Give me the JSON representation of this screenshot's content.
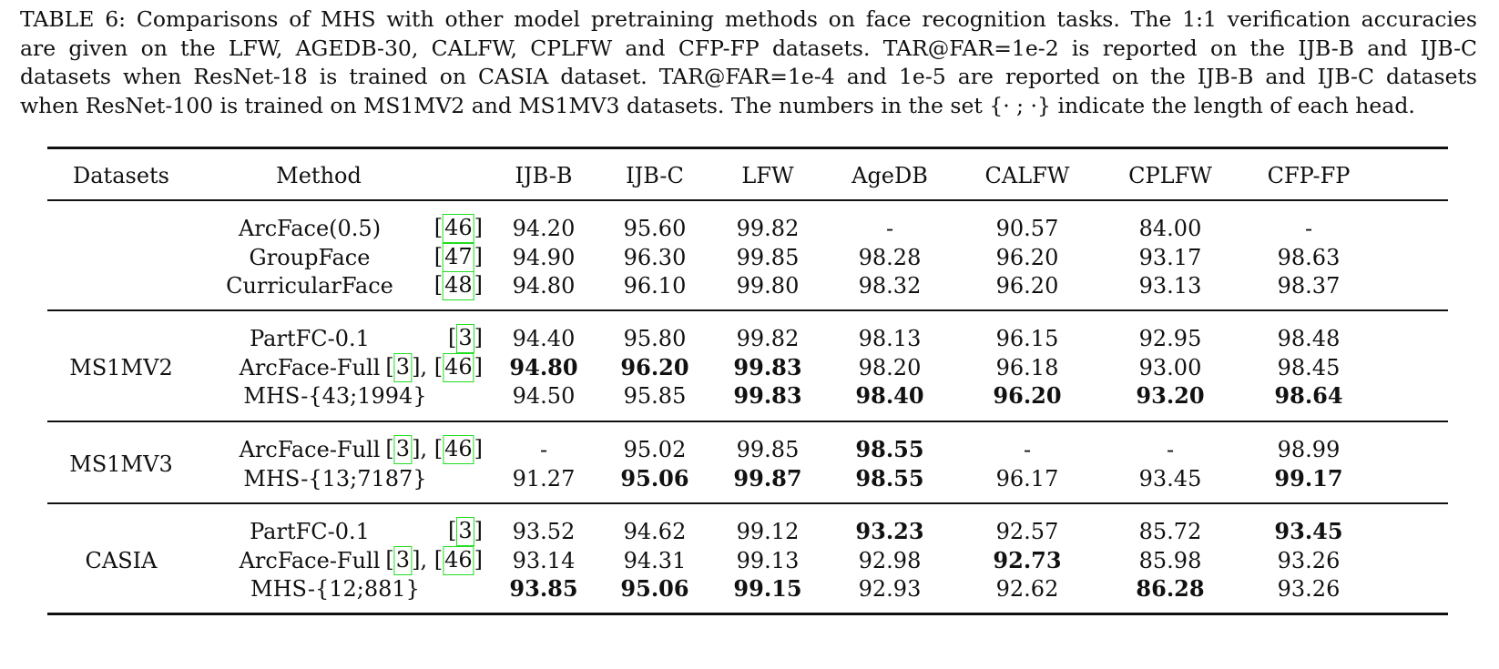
{
  "caption": {
    "lines": [
      "TABLE 6: Comparisons of MHS with other model pretraining methods on face recognition tasks. The 1:1 verification accuracies",
      "are given on the LFW, AGEDB-30, CALFW, CPLFW and CFP-FP datasets. TAR@FAR=1e-2 is reported on the IJB-B and IJB-C",
      "datasets when ResNet-18 is trained on CASIA dataset. TAR@FAR=1e-4 and 1e-5 are reported on the IJB-B and IJB-C datasets",
      "when ResNet-100 is trained on MS1MV2 and MS1MV3 datasets. The numbers in the set {· ; ·} indicate the length of each head."
    ]
  },
  "table": {
    "headers": [
      "Datasets",
      "Method",
      "IJB-B",
      "IJB-C",
      "LFW",
      "AgeDB",
      "CALFW",
      "CPLFW",
      "CFP-FP"
    ],
    "groups": [
      {
        "dataset": "",
        "rows": [
          {
            "method": "ArcFace(0.5)",
            "refs": [
              "46"
            ],
            "values": [
              "94.20",
              "95.60",
              "99.82",
              "-",
              "90.57",
              "84.00",
              "-"
            ],
            "bold": []
          },
          {
            "method": "GroupFace",
            "refs": [
              "47"
            ],
            "values": [
              "94.90",
              "96.30",
              "99.85",
              "98.28",
              "96.20",
              "93.17",
              "98.63"
            ],
            "bold": []
          },
          {
            "method": "CurricularFace",
            "refs": [
              "48"
            ],
            "values": [
              "94.80",
              "96.10",
              "99.80",
              "98.32",
              "96.20",
              "93.13",
              "98.37"
            ],
            "bold": []
          }
        ]
      },
      {
        "dataset": "MS1MV2",
        "rows": [
          {
            "method": "PartFC-0.1",
            "refs": [
              "3"
            ],
            "values": [
              "94.40",
              "95.80",
              "99.82",
              "98.13",
              "96.15",
              "92.95",
              "98.48"
            ],
            "bold": []
          },
          {
            "method": "ArcFace-Full",
            "refs": [
              "3",
              "46"
            ],
            "values": [
              "94.80",
              "96.20",
              "99.83",
              "98.20",
              "96.18",
              "93.00",
              "98.45"
            ],
            "bold": [
              0,
              1,
              2
            ]
          },
          {
            "method": "MHS-{43;1994}",
            "refs": [],
            "values": [
              "94.50",
              "95.85",
              "99.83",
              "98.40",
              "96.20",
              "93.20",
              "98.64"
            ],
            "bold": [
              2,
              3,
              4,
              5,
              6
            ]
          }
        ]
      },
      {
        "dataset": "MS1MV3",
        "rows": [
          {
            "method": "ArcFace-Full",
            "refs": [
              "3",
              "46"
            ],
            "values": [
              "-",
              "95.02",
              "99.85",
              "98.55",
              "-",
              "-",
              "98.99"
            ],
            "bold": [
              3
            ]
          },
          {
            "method": "MHS-{13;7187}",
            "refs": [],
            "values": [
              "91.27",
              "95.06",
              "99.87",
              "98.55",
              "96.17",
              "93.45",
              "99.17"
            ],
            "bold": [
              1,
              2,
              3,
              6
            ]
          }
        ]
      },
      {
        "dataset": "CASIA",
        "rows": [
          {
            "method": "PartFC-0.1",
            "refs": [
              "3"
            ],
            "values": [
              "93.52",
              "94.62",
              "99.12",
              "93.23",
              "92.57",
              "85.72",
              "93.45"
            ],
            "bold": [
              3,
              6
            ]
          },
          {
            "method": "ArcFace-Full",
            "refs": [
              "3",
              "46"
            ],
            "values": [
              "93.14",
              "94.31",
              "99.13",
              "92.98",
              "92.73",
              "85.98",
              "93.26"
            ],
            "bold": [
              4
            ]
          },
          {
            "method": "MHS-{12;881}",
            "refs": [],
            "values": [
              "93.85",
              "95.06",
              "99.15",
              "92.93",
              "92.62",
              "86.28",
              "93.26"
            ],
            "bold": [
              0,
              1,
              2,
              5
            ]
          }
        ]
      }
    ]
  }
}
